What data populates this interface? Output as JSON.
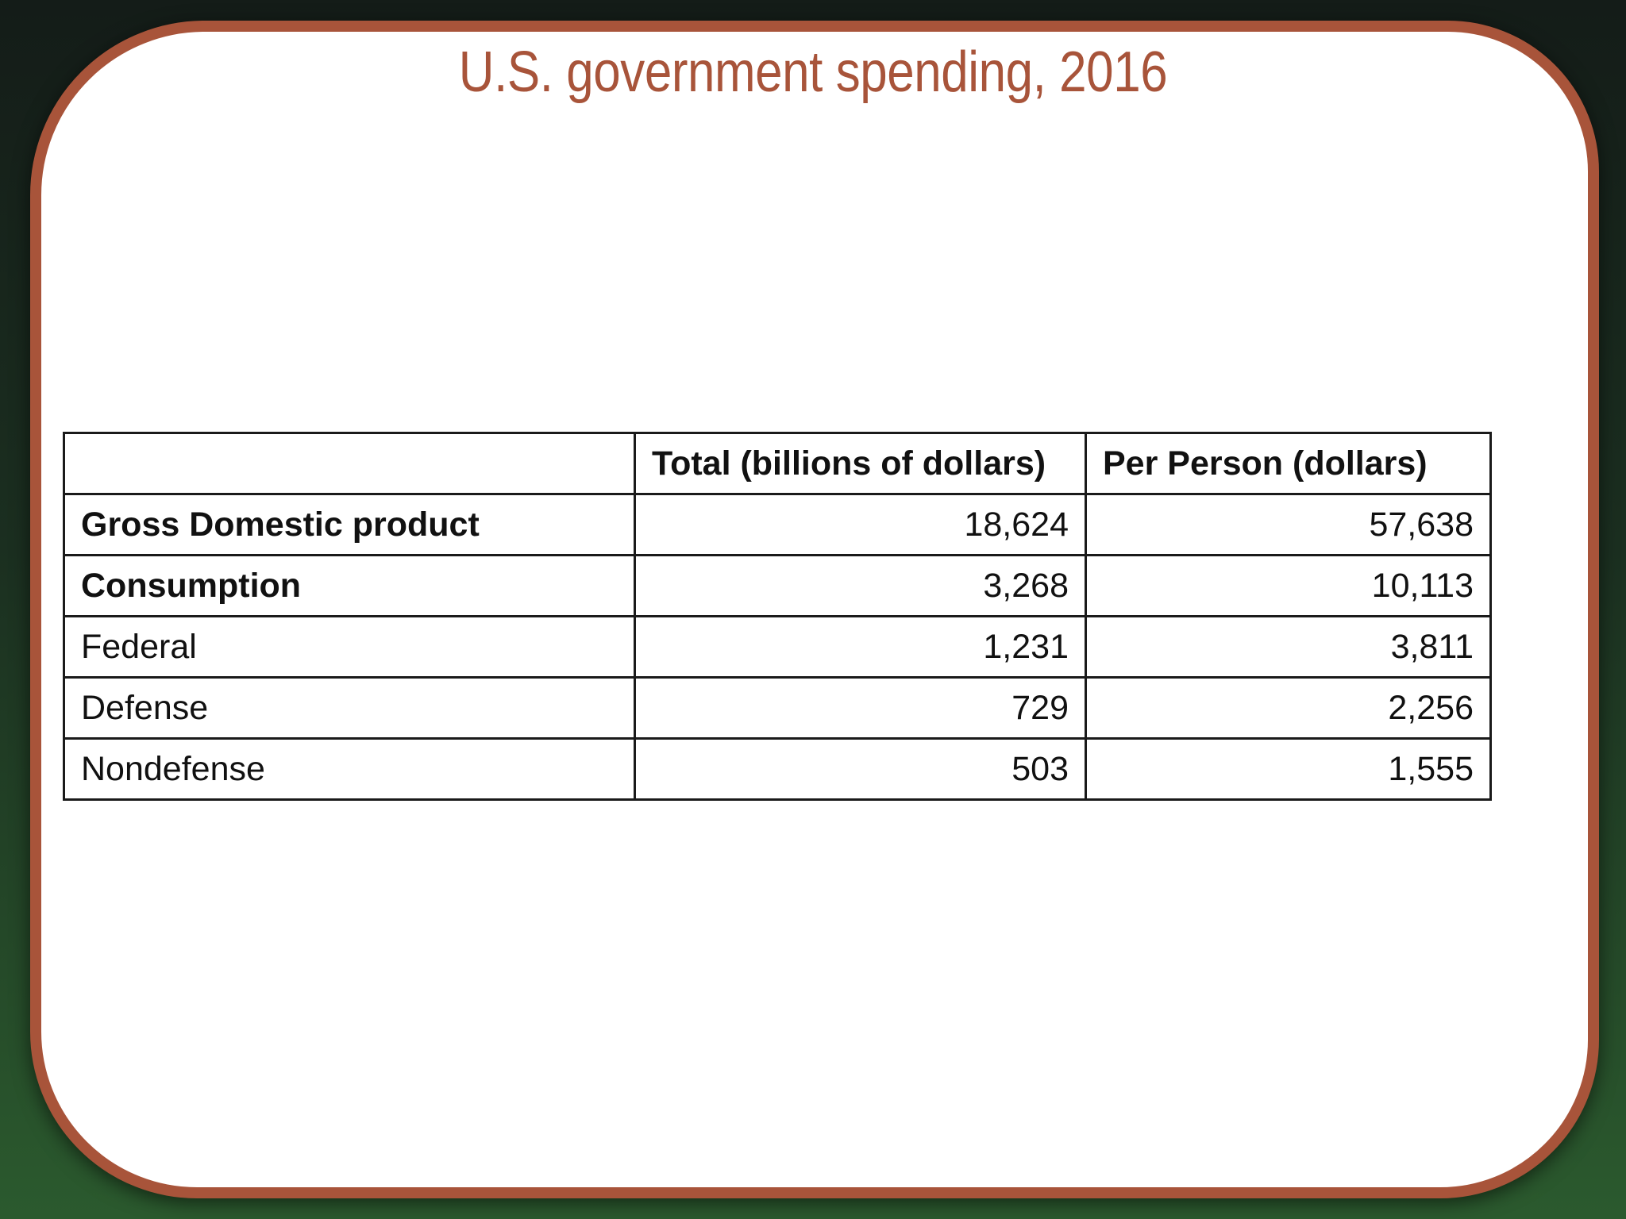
{
  "slide": {
    "title": "U.S. government spending, 2016"
  },
  "colors": {
    "accent": "#a8543a",
    "background_top": "#141c18",
    "background_bottom": "#2b5a2e"
  },
  "table": {
    "headers": [
      "",
      "Total (billions of dollars)",
      "Per Person (dollars)"
    ],
    "rows": [
      {
        "label": "Gross Domestic product",
        "bold": true,
        "total": "18,624",
        "per_person": "57,638"
      },
      {
        "label": "Consumption",
        "bold": true,
        "total": "3,268",
        "per_person": "10,113"
      },
      {
        "label": "Federal",
        "bold": false,
        "total": "1,231",
        "per_person": "3,811"
      },
      {
        "label": "Defense",
        "bold": false,
        "total": "729",
        "per_person": "2,256"
      },
      {
        "label": "Nondefense",
        "bold": false,
        "total": "503",
        "per_person": "1,555"
      }
    ]
  }
}
